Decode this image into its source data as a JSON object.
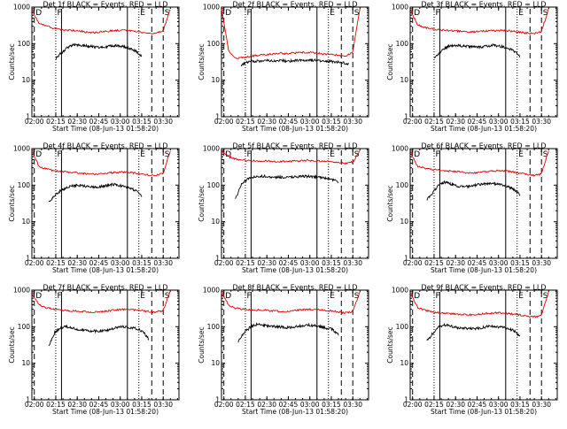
{
  "colors": {
    "events": "#000000",
    "lld": "#e00000",
    "axes": "#000000",
    "background": "#ffffff"
  },
  "chart_data": [
    {
      "type": "line",
      "title": "Det 1f BLACK = Events, RED = LLD",
      "xlabel": "Start Time (08-Jun-13 01:58:20)",
      "ylabel": "Counts/sec",
      "yscale": "log",
      "ylim": [
        1,
        1000
      ],
      "xlim": [
        "01:58:20",
        "03:41:00"
      ],
      "x_ticks": [
        "02:00",
        "02:15",
        "02:30",
        "02:45",
        "03:00",
        "03:15",
        "03:30"
      ],
      "y_ticks": [
        "1",
        "10",
        "100",
        "1000"
      ],
      "markers": [
        {
          "label": "D",
          "time": "02:00",
          "style": "dashed"
        },
        {
          "label": "F",
          "time": "02:15",
          "style": "dotted"
        },
        {
          "label": "",
          "time": "02:19",
          "style": "solid"
        },
        {
          "label": "",
          "time": "03:05",
          "style": "solid"
        },
        {
          "label": "E",
          "time": "03:13",
          "style": "dotted"
        },
        {
          "label": "",
          "time": "03:22",
          "style": "dashed"
        },
        {
          "label": "S",
          "time": "03:30",
          "style": "dashed"
        }
      ],
      "series": [
        {
          "name": "Events",
          "start": "02:15",
          "end": "03:15",
          "values": [
            40,
            55,
            75,
            90,
            92,
            88,
            85,
            82,
            78,
            80,
            85,
            90,
            85,
            80,
            72,
            62,
            45
          ]
        },
        {
          "name": "LLD",
          "start": "01:58:20",
          "end": "03:35",
          "values": [
            800,
            350,
            300,
            260,
            240,
            230,
            225,
            215,
            200,
            205,
            215,
            225,
            230,
            235,
            220,
            205,
            195,
            190,
            220,
            900
          ]
        }
      ]
    },
    {
      "type": "line",
      "title": "Det 2f BLACK = Events, RED = LLD",
      "xlabel": "Start Time (08-Jun-13 01:58:20)",
      "ylabel": "Counts/sec",
      "yscale": "log",
      "ylim": [
        1,
        1000
      ],
      "xlim": [
        "01:58:20",
        "03:41:00"
      ],
      "x_ticks": [
        "02:00",
        "02:15",
        "02:30",
        "02:45",
        "03:00",
        "03:15",
        "03:30"
      ],
      "y_ticks": [
        "1",
        "10",
        "100",
        "1000"
      ],
      "markers": [
        {
          "label": "D",
          "time": "02:00",
          "style": "dashed"
        },
        {
          "label": "F",
          "time": "02:15",
          "style": "dotted"
        },
        {
          "label": "",
          "time": "02:19",
          "style": "solid"
        },
        {
          "label": "",
          "time": "03:05",
          "style": "solid"
        },
        {
          "label": "E",
          "time": "03:13",
          "style": "dotted"
        },
        {
          "label": "",
          "time": "03:22",
          "style": "dashed"
        },
        {
          "label": "S",
          "time": "03:30",
          "style": "dashed"
        }
      ],
      "series": [
        {
          "name": "Events",
          "start": "02:12",
          "end": "03:27",
          "values": [
            25,
            32,
            33,
            34,
            35,
            34,
            35,
            33,
            34,
            35,
            36,
            35,
            34,
            33,
            32,
            30,
            28
          ]
        },
        {
          "name": "LLD",
          "start": "01:58:20",
          "end": "03:35",
          "values": [
            900,
            60,
            40,
            42,
            45,
            48,
            50,
            52,
            55,
            53,
            55,
            57,
            58,
            56,
            52,
            50,
            48,
            45,
            60,
            900
          ]
        }
      ]
    },
    {
      "type": "line",
      "title": "Det 3f BLACK = Events, RED = LLD",
      "xlabel": "Start Time (08-Jun-13 01:58:20)",
      "ylabel": "Counts/sec",
      "yscale": "log",
      "ylim": [
        1,
        1000
      ],
      "xlim": [
        "01:58:20",
        "03:41:00"
      ],
      "x_ticks": [
        "02:00",
        "02:15",
        "02:30",
        "02:45",
        "03:00",
        "03:15",
        "03:30"
      ],
      "y_ticks": [
        "1",
        "10",
        "100",
        "1000"
      ],
      "markers": [
        {
          "label": "D",
          "time": "02:00",
          "style": "dashed"
        },
        {
          "label": "F",
          "time": "02:15",
          "style": "dotted"
        },
        {
          "label": "",
          "time": "02:19",
          "style": "solid"
        },
        {
          "label": "",
          "time": "03:05",
          "style": "solid"
        },
        {
          "label": "E",
          "time": "03:13",
          "style": "dotted"
        },
        {
          "label": "",
          "time": "03:22",
          "style": "dashed"
        },
        {
          "label": "S",
          "time": "03:30",
          "style": "dashed"
        }
      ],
      "series": [
        {
          "name": "Events",
          "start": "02:15",
          "end": "03:15",
          "values": [
            40,
            55,
            75,
            88,
            90,
            87,
            85,
            82,
            80,
            82,
            86,
            90,
            86,
            80,
            72,
            62,
            45
          ]
        },
        {
          "name": "LLD",
          "start": "01:58:20",
          "end": "03:35",
          "values": [
            850,
            330,
            280,
            255,
            240,
            230,
            225,
            215,
            205,
            210,
            218,
            225,
            230,
            230,
            218,
            205,
            195,
            188,
            215,
            900
          ]
        }
      ]
    },
    {
      "type": "line",
      "title": "Det 4f BLACK = Events, RED = LLD",
      "xlabel": "Start Time (08-Jun-13 01:58:20)",
      "ylabel": "Counts/sec",
      "yscale": "log",
      "ylim": [
        1,
        1000
      ],
      "xlim": [
        "01:58:20",
        "03:41:00"
      ],
      "x_ticks": [
        "02:00",
        "02:15",
        "02:30",
        "02:45",
        "03:00",
        "03:15",
        "03:30"
      ],
      "y_ticks": [
        "1",
        "10",
        "100",
        "1000"
      ],
      "markers": [
        {
          "label": "D",
          "time": "02:00",
          "style": "dashed"
        },
        {
          "label": "F",
          "time": "02:15",
          "style": "dotted"
        },
        {
          "label": "",
          "time": "02:19",
          "style": "solid"
        },
        {
          "label": "",
          "time": "03:05",
          "style": "solid"
        },
        {
          "label": "E",
          "time": "03:13",
          "style": "dotted"
        },
        {
          "label": "",
          "time": "03:22",
          "style": "dashed"
        },
        {
          "label": "S",
          "time": "03:30",
          "style": "dashed"
        }
      ],
      "series": [
        {
          "name": "Events",
          "start": "02:10",
          "end": "03:15",
          "values": [
            35,
            50,
            70,
            85,
            95,
            100,
            95,
            90,
            88,
            92,
            98,
            105,
            100,
            92,
            85,
            70,
            50
          ]
        },
        {
          "name": "LLD",
          "start": "01:58:20",
          "end": "03:35",
          "values": [
            850,
            320,
            280,
            250,
            235,
            225,
            220,
            210,
            200,
            205,
            212,
            220,
            225,
            228,
            215,
            200,
            190,
            185,
            210,
            900
          ]
        }
      ]
    },
    {
      "type": "line",
      "title": "Det 5f BLACK = Events, RED = LLD",
      "xlabel": "Start Time (08-Jun-13 01:58:20)",
      "ylabel": "Counts/sec",
      "yscale": "log",
      "ylim": [
        1,
        1000
      ],
      "xlim": [
        "01:58:20",
        "03:41:00"
      ],
      "x_ticks": [
        "02:00",
        "02:15",
        "02:30",
        "02:45",
        "03:00",
        "03:15",
        "03:30"
      ],
      "y_ticks": [
        "1",
        "10",
        "100",
        "1000"
      ],
      "markers": [
        {
          "label": "D",
          "time": "02:00",
          "style": "dashed"
        },
        {
          "label": "F",
          "time": "02:15",
          "style": "dotted"
        },
        {
          "label": "",
          "time": "02:19",
          "style": "solid"
        },
        {
          "label": "",
          "time": "03:05",
          "style": "solid"
        },
        {
          "label": "E",
          "time": "03:13",
          "style": "dotted"
        },
        {
          "label": "",
          "time": "03:22",
          "style": "dashed"
        },
        {
          "label": "S",
          "time": "03:30",
          "style": "dashed"
        }
      ],
      "series": [
        {
          "name": "Events",
          "start": "02:08",
          "end": "03:20",
          "values": [
            40,
            110,
            150,
            170,
            175,
            172,
            168,
            165,
            162,
            165,
            170,
            175,
            170,
            162,
            155,
            145,
            120
          ]
        },
        {
          "name": "LLD",
          "start": "01:58:20",
          "end": "03:35",
          "values": [
            900,
            600,
            520,
            480,
            470,
            460,
            455,
            450,
            440,
            445,
            455,
            465,
            470,
            465,
            450,
            430,
            410,
            400,
            420,
            900
          ]
        }
      ]
    },
    {
      "type": "line",
      "title": "Det 6f BLACK = Events, RED = LLD",
      "xlabel": "Start Time (08-Jun-13 01:58:20)",
      "ylabel": "Counts/sec",
      "yscale": "log",
      "ylim": [
        1,
        1000
      ],
      "xlim": [
        "01:58:20",
        "03:41:00"
      ],
      "x_ticks": [
        "02:00",
        "02:15",
        "02:30",
        "02:45",
        "03:00",
        "03:15",
        "03:30"
      ],
      "y_ticks": [
        "1",
        "10",
        "100",
        "1000"
      ],
      "markers": [
        {
          "label": "D",
          "time": "02:00",
          "style": "dashed"
        },
        {
          "label": "F",
          "time": "02:15",
          "style": "dotted"
        },
        {
          "label": "",
          "time": "02:19",
          "style": "solid"
        },
        {
          "label": "",
          "time": "03:05",
          "style": "solid"
        },
        {
          "label": "E",
          "time": "03:13",
          "style": "dotted"
        },
        {
          "label": "",
          "time": "03:22",
          "style": "dashed"
        },
        {
          "label": "S",
          "time": "03:30",
          "style": "dashed"
        }
      ],
      "series": [
        {
          "name": "Events",
          "start": "02:10",
          "end": "03:15",
          "values": [
            40,
            60,
            100,
            120,
            110,
            95,
            90,
            92,
            98,
            105,
            110,
            115,
            108,
            100,
            90,
            75,
            55
          ]
        },
        {
          "name": "LLD",
          "start": "01:58:20",
          "end": "03:35",
          "values": [
            850,
            330,
            290,
            270,
            255,
            245,
            240,
            230,
            215,
            220,
            228,
            240,
            250,
            245,
            232,
            215,
            200,
            185,
            200,
            900
          ]
        }
      ]
    },
    {
      "type": "line",
      "title": "Det 7f BLACK = Events, RED = LLD",
      "xlabel": "Start Time (08-Jun-13 01:58:20)",
      "ylabel": "Counts/sec",
      "yscale": "log",
      "ylim": [
        1,
        1000
      ],
      "xlim": [
        "01:58:20",
        "03:41:00"
      ],
      "x_ticks": [
        "02:00",
        "02:15",
        "02:30",
        "02:45",
        "03:00",
        "03:15",
        "03:30"
      ],
      "y_ticks": [
        "1",
        "10",
        "100",
        "1000"
      ],
      "markers": [
        {
          "label": "D",
          "time": "02:00",
          "style": "dashed"
        },
        {
          "label": "F",
          "time": "02:15",
          "style": "dotted"
        },
        {
          "label": "",
          "time": "02:19",
          "style": "solid"
        },
        {
          "label": "",
          "time": "03:05",
          "style": "solid"
        },
        {
          "label": "E",
          "time": "03:13",
          "style": "dotted"
        },
        {
          "label": "",
          "time": "03:22",
          "style": "dashed"
        },
        {
          "label": "S",
          "time": "03:30",
          "style": "dashed"
        }
      ],
      "series": [
        {
          "name": "Events",
          "start": "02:10",
          "end": "03:20",
          "values": [
            30,
            70,
            95,
            100,
            90,
            82,
            78,
            76,
            75,
            78,
            85,
            95,
            100,
            95,
            88,
            75,
            45
          ]
        },
        {
          "name": "LLD",
          "start": "01:58:20",
          "end": "03:35",
          "values": [
            800,
            400,
            330,
            300,
            285,
            275,
            270,
            260,
            250,
            255,
            265,
            278,
            290,
            300,
            290,
            275,
            260,
            250,
            275,
            950
          ]
        }
      ]
    },
    {
      "type": "line",
      "title": "Det 8f BLACK = Events, RED = LLD",
      "xlabel": "Start Time (08-Jun-13 01:58:20)",
      "ylabel": "Counts/sec",
      "yscale": "log",
      "ylim": [
        1,
        1000
      ],
      "xlim": [
        "01:58:20",
        "03:41:00"
      ],
      "x_ticks": [
        "02:00",
        "02:15",
        "02:30",
        "02:45",
        "03:00",
        "03:15",
        "03:30"
      ],
      "y_ticks": [
        "1",
        "10",
        "100",
        "1000"
      ],
      "markers": [
        {
          "label": "D",
          "time": "02:00",
          "style": "dashed"
        },
        {
          "label": "F",
          "time": "02:15",
          "style": "dotted"
        },
        {
          "label": "",
          "time": "02:19",
          "style": "solid"
        },
        {
          "label": "",
          "time": "03:05",
          "style": "solid"
        },
        {
          "label": "E",
          "time": "03:13",
          "style": "dotted"
        },
        {
          "label": "",
          "time": "03:22",
          "style": "dashed"
        },
        {
          "label": "S",
          "time": "03:30",
          "style": "dashed"
        }
      ],
      "series": [
        {
          "name": "Events",
          "start": "02:10",
          "end": "03:20",
          "values": [
            40,
            70,
            100,
            115,
            110,
            105,
            100,
            98,
            95,
            98,
            105,
            110,
            108,
            100,
            92,
            85,
            60
          ]
        },
        {
          "name": "LLD",
          "start": "01:58:20",
          "end": "03:35",
          "values": [
            850,
            380,
            320,
            300,
            290,
            285,
            280,
            270,
            260,
            265,
            278,
            290,
            300,
            295,
            285,
            270,
            255,
            240,
            260,
            900
          ]
        }
      ]
    },
    {
      "type": "line",
      "title": "Det 9f BLACK = Events, RED = LLD",
      "xlabel": "Start Time (08-Jun-13 01:58:20)",
      "ylabel": "Counts/sec",
      "yscale": "log",
      "ylim": [
        1,
        1000
      ],
      "xlim": [
        "01:58:20",
        "03:41:00"
      ],
      "x_ticks": [
        "02:00",
        "02:15",
        "02:30",
        "02:45",
        "03:00",
        "03:15",
        "03:30"
      ],
      "y_ticks": [
        "1",
        "10",
        "100",
        "1000"
      ],
      "markers": [
        {
          "label": "D",
          "time": "02:00",
          "style": "dashed"
        },
        {
          "label": "F",
          "time": "02:15",
          "style": "dotted"
        },
        {
          "label": "",
          "time": "02:19",
          "style": "solid"
        },
        {
          "label": "",
          "time": "03:05",
          "style": "solid"
        },
        {
          "label": "E",
          "time": "03:13",
          "style": "dotted"
        },
        {
          "label": "",
          "time": "03:22",
          "style": "dashed"
        },
        {
          "label": "S",
          "time": "03:30",
          "style": "dashed"
        }
      ],
      "series": [
        {
          "name": "Events",
          "start": "02:10",
          "end": "03:15",
          "values": [
            40,
            65,
            100,
            110,
            105,
            95,
            92,
            90,
            88,
            92,
            98,
            105,
            100,
            95,
            88,
            78,
            55
          ]
        },
        {
          "name": "LLD",
          "start": "01:58:20",
          "end": "03:35",
          "values": [
            850,
            340,
            280,
            255,
            240,
            230,
            225,
            218,
            210,
            215,
            225,
            235,
            240,
            235,
            222,
            210,
            195,
            185,
            200,
            900
          ]
        }
      ]
    }
  ]
}
